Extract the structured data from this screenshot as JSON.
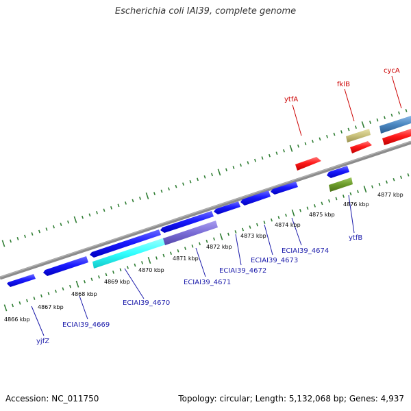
{
  "title": "Escherichia coli IAI39, complete genome",
  "footer": {
    "accession": "Accession: NC_011750",
    "summary": "Topology: circular; Length: 5,132,068 bp; Genes: 4,937"
  },
  "kbp_labels": [
    "4866 kbp",
    "4867 kbp",
    "4868 kbp",
    "4869 kbp",
    "4870 kbp",
    "4871 kbp",
    "4872 kbp",
    "4873 kbp",
    "4874 kbp",
    "4875 kbp",
    "4876 kbp",
    "4877 kbp"
  ],
  "gene_labels": {
    "yjfZ": "yjfZ",
    "ECIAI39_4669": "ECIAI39_4669",
    "ECIAI39_4670": "ECIAI39_4670",
    "ECIAI39_4671": "ECIAI39_4671",
    "ECIAI39_4672": "ECIAI39_4672",
    "ECIAI39_4673": "ECIAI39_4673",
    "ECIAI39_4674": "ECIAI39_4674",
    "ytfB": "ytfB",
    "ytfA": "ytfA",
    "fklB": "fklB",
    "cycA": "cycA"
  },
  "colors": {
    "backbone": "#8c8c8c",
    "tick": "#2e7d32",
    "gene_blue": "#1a1aff",
    "gene_red": "#ff1a1a",
    "label_blue": "#1a1aaa",
    "label_red": "#cc0000",
    "cds_cyan": "#33ffff",
    "cds_purple": "#7a6cd6",
    "cds_khaki": "#c8c07a",
    "cds_olive": "#6a9a2a",
    "cds_steel": "#4a86c0"
  }
}
